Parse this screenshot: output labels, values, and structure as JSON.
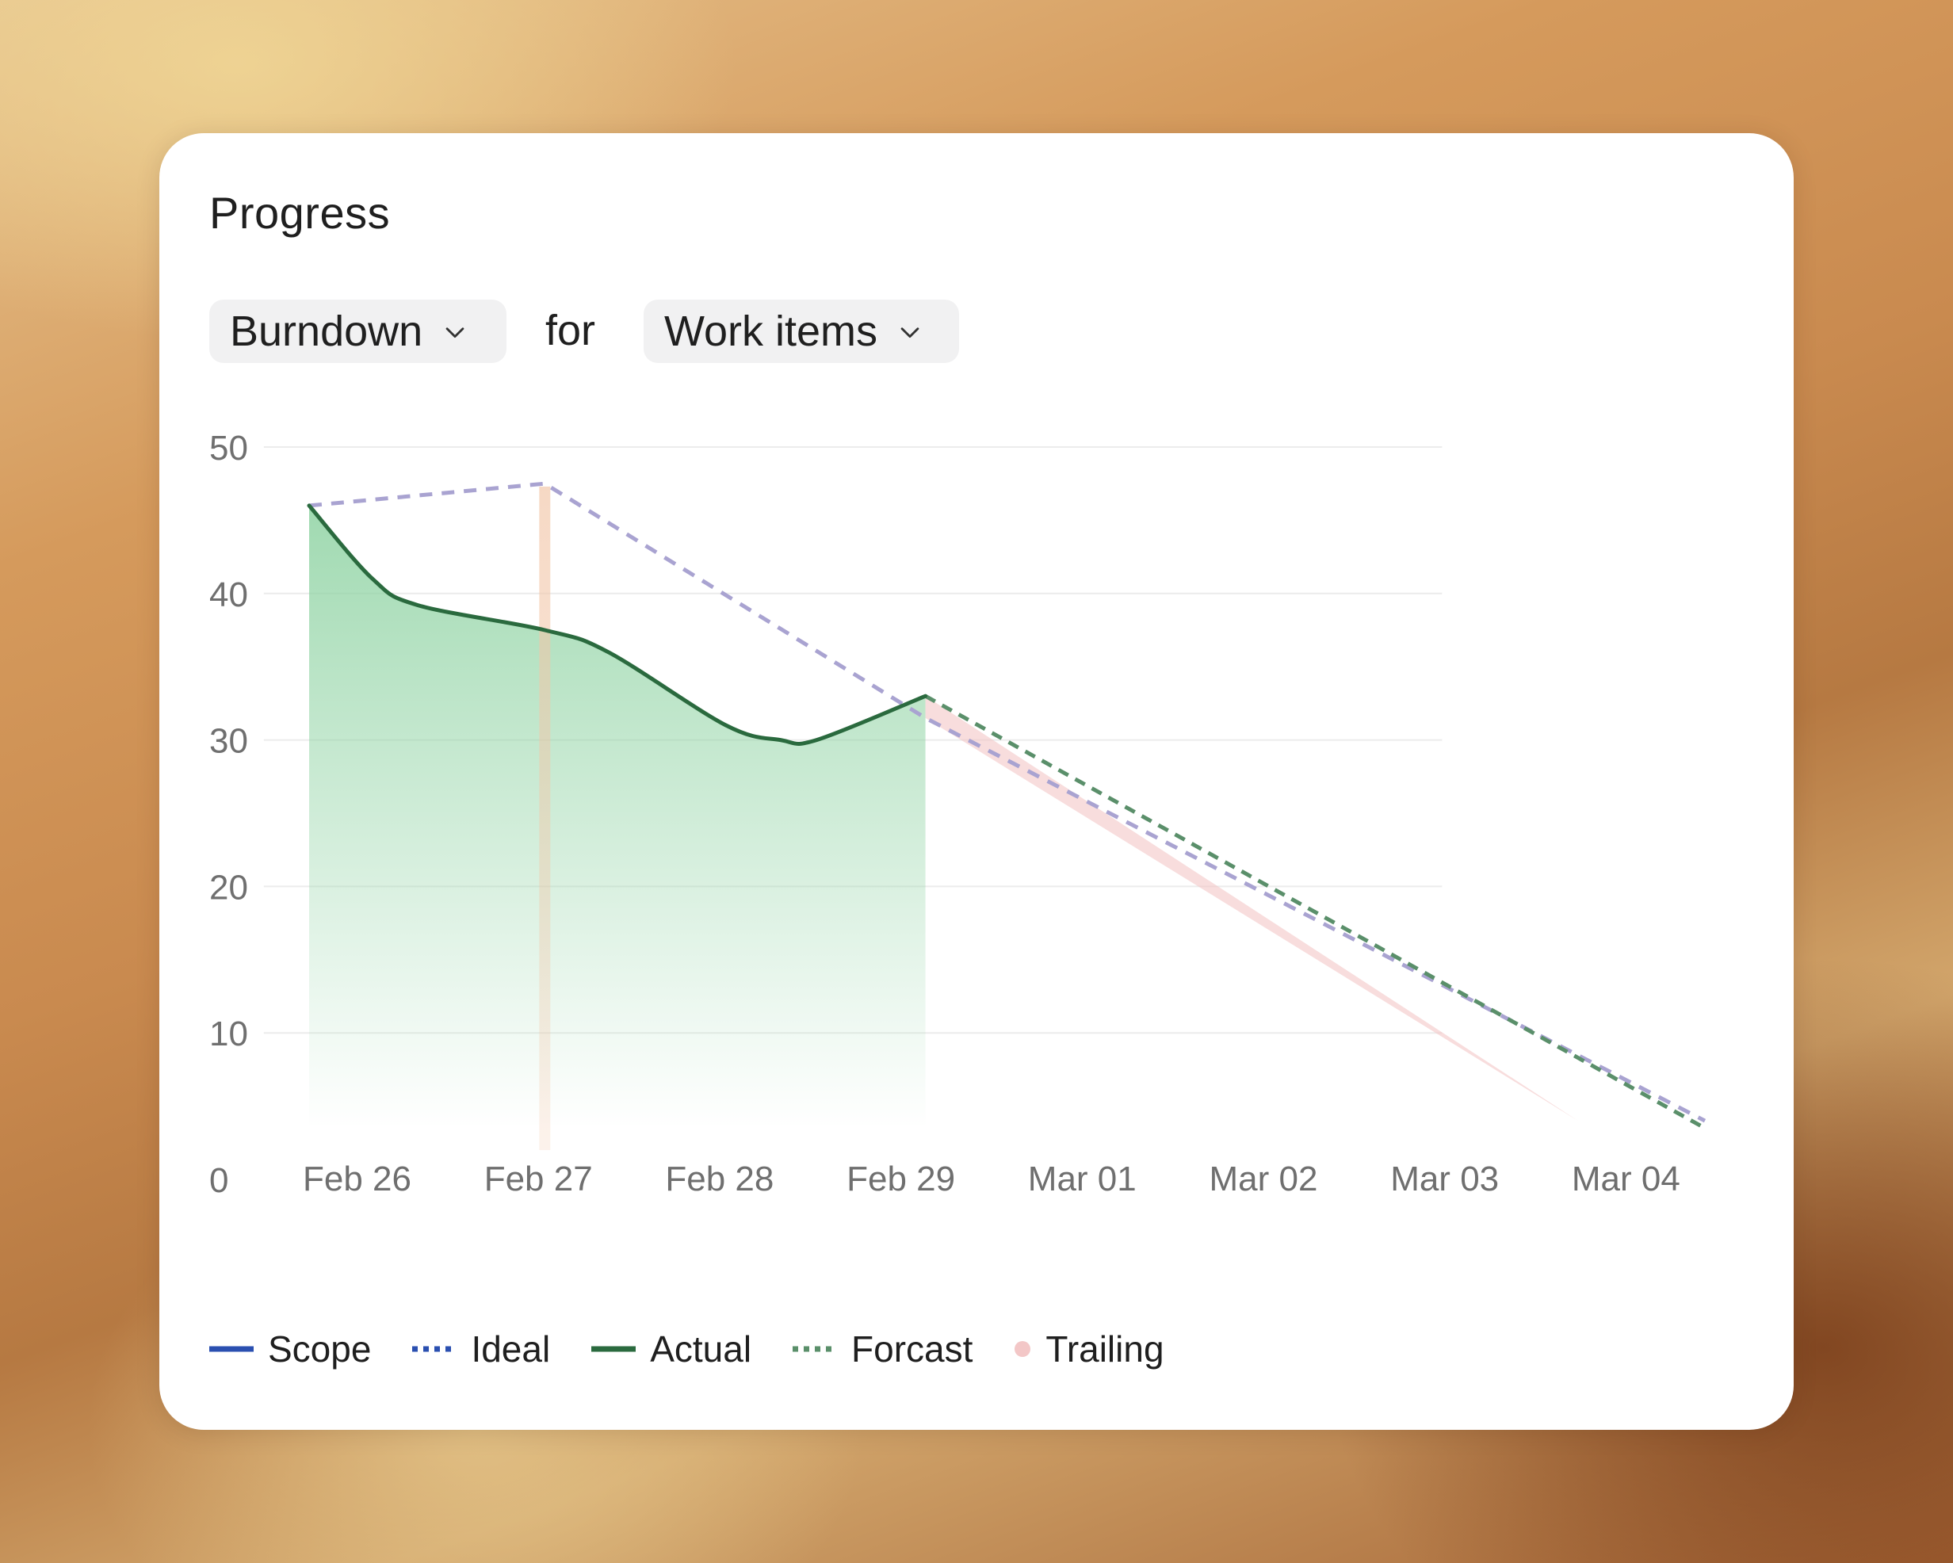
{
  "card": {
    "title": "Progress",
    "metric_dropdown": {
      "label": "Burndown",
      "icon": "chevron-down-icon"
    },
    "for_label": "for",
    "scope_dropdown": {
      "label": "Work items",
      "icon": "chevron-down-icon"
    }
  },
  "colors": {
    "scope": "#2a4fb0",
    "ideal": "#a9a3d1",
    "ideal_legend": "#2a4fb0",
    "actual": "#2a6a3e",
    "actual_fill": "#8fd3a3",
    "forecast": "#5a8f6a",
    "trailing": "#f3c7c7",
    "marker": "#f2c6a8"
  },
  "chart_data": {
    "type": "line",
    "y_ticks": [
      "50",
      "40",
      "30",
      "20",
      "10",
      "0"
    ],
    "ylim": [
      0,
      50
    ],
    "x_categories": [
      "Feb 26",
      "Feb 27",
      "Feb 28",
      "Feb 29",
      "Mar 01",
      "Mar 02",
      "Mar 03",
      "Mar 04"
    ],
    "series": [
      {
        "name": "Actual",
        "style": "solid",
        "filled": true,
        "x": [
          0,
          0.35,
          0.6,
          1.3,
          1.65,
          2.3,
          2.6,
          2.8,
          3.4
        ],
        "y": [
          46,
          41,
          39.2,
          37.5,
          36,
          31,
          30,
          30,
          33
        ]
      },
      {
        "name": "Ideal",
        "style": "dashed",
        "x": [
          0,
          1.3,
          3.4,
          7.7
        ],
        "y": [
          46,
          47.5,
          31.5,
          4
        ]
      },
      {
        "name": "Forcast",
        "style": "dashed",
        "x": [
          3.4,
          7.7
        ],
        "y": [
          33,
          3.5
        ]
      },
      {
        "name": "Trailing",
        "style": "band",
        "x_upper": [
          3.4,
          7.0
        ],
        "y_upper": [
          33,
          4
        ],
        "x_lower": [
          3.4,
          7.0
        ],
        "y_lower": [
          31.5,
          4
        ]
      },
      {
        "name": "Scope",
        "style": "solid",
        "x": [],
        "y": []
      }
    ],
    "marker_x": 1.3,
    "legend": [
      {
        "label": "Scope",
        "key": "scope",
        "style": "solid"
      },
      {
        "label": "Ideal",
        "key": "ideal_legend",
        "style": "dotted"
      },
      {
        "label": "Actual",
        "key": "actual",
        "style": "solid"
      },
      {
        "label": "Forcast",
        "key": "forecast",
        "style": "dotted"
      },
      {
        "label": "Trailing",
        "key": "trailing",
        "style": "dot"
      }
    ],
    "grid": true,
    "legend_position": "bottom-left"
  }
}
